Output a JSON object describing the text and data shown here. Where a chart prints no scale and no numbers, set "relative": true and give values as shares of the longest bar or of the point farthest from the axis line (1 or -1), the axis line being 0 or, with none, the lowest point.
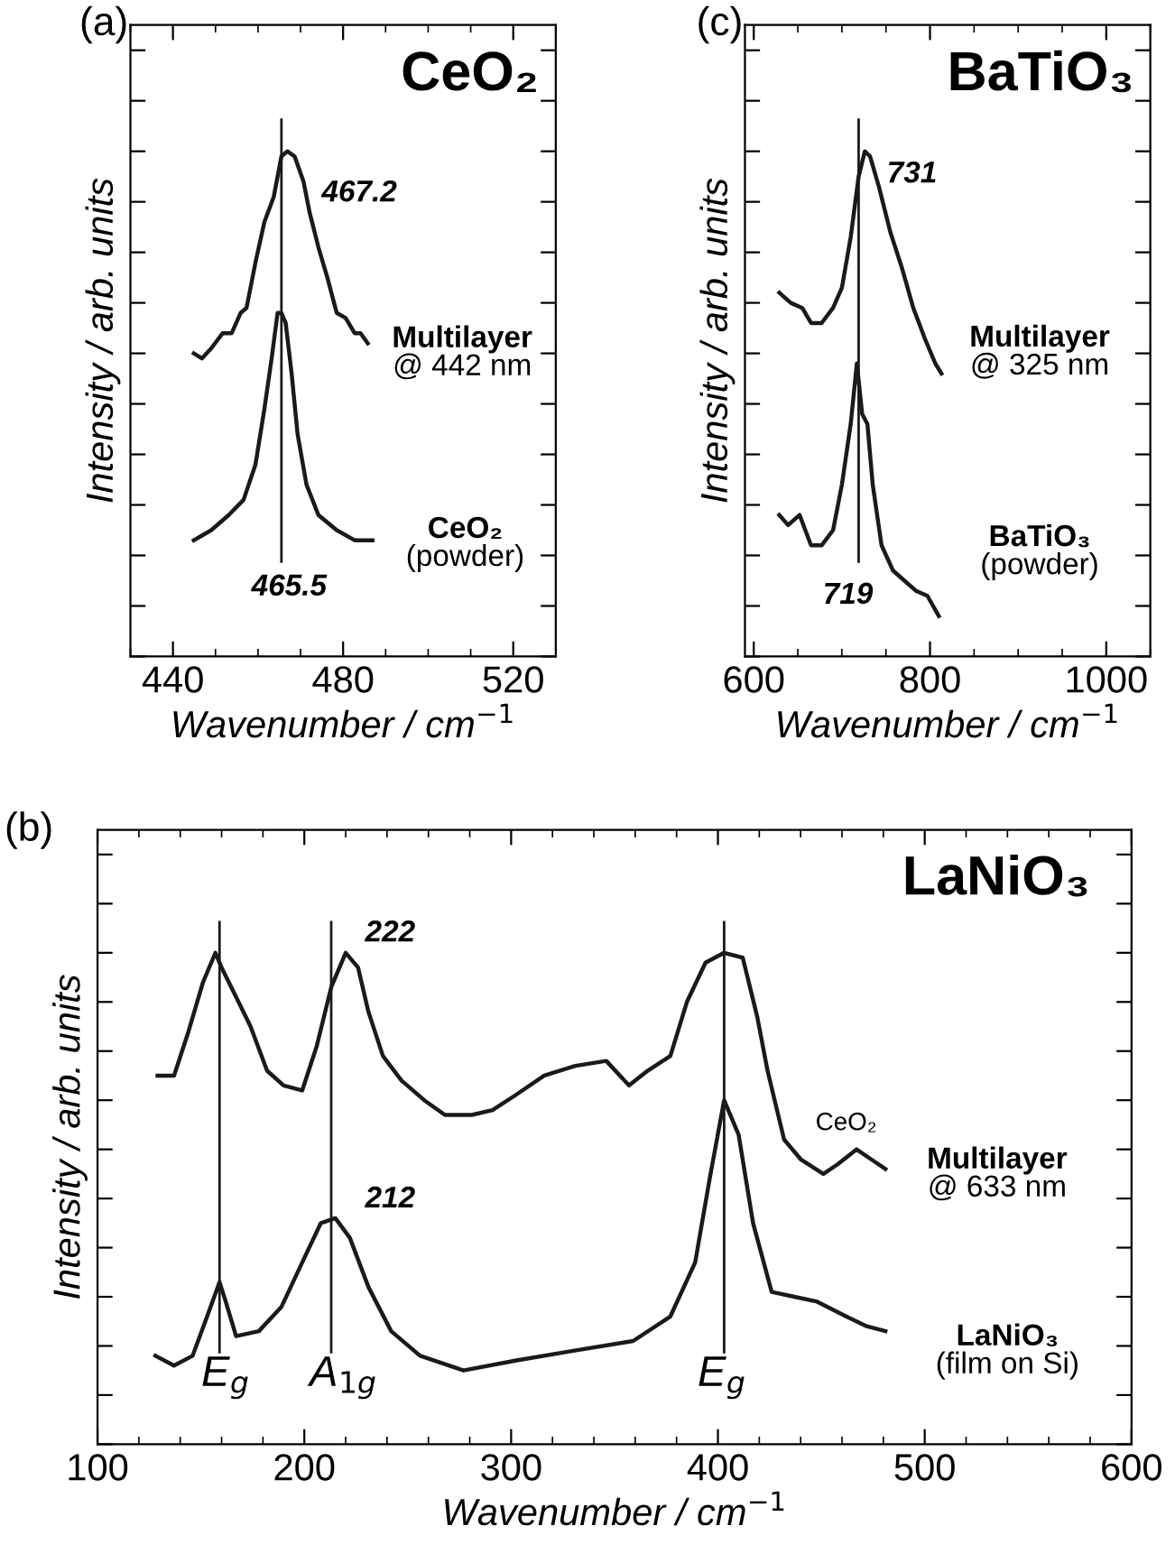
{
  "chart_data": [
    {
      "type": "line",
      "title": "CeO₂",
      "xlabel": "Wavenumber / cm$^{−1}$",
      "ylabel": "Intensity / arb. units",
      "relative": true,
      "tick_labels": "x",
      "grid": false,
      "marker": "none",
      "line_style": "solid",
      "xlim": [
        430,
        530
      ],
      "xticks": [
        440,
        480,
        520
      ],
      "series": [
        {
          "color": "#1a1a1a",
          "x": [
            444.9,
            446.8,
            449,
            451.7,
            453.8,
            455.9,
            457.3,
            459.4,
            461.5,
            463.7,
            465.5,
            466.9,
            468.6,
            470.7,
            472.1,
            474.2,
            476.3,
            478.5,
            480.6,
            482.7,
            484.1,
            485.8
          ],
          "values": [
            0.6,
            0.59,
            0.61,
            0.64,
            0.64,
            0.68,
            0.69,
            0.78,
            0.86,
            0.91,
            0.99,
            1.0,
            0.99,
            0.94,
            0.88,
            0.81,
            0.75,
            0.68,
            0.67,
            0.64,
            0.64,
            0.62
          ]
        },
        {
          "color": "#1a1a1a",
          "x": [
            444.9,
            449,
            453.1,
            456.6,
            459.4,
            461.5,
            463.2,
            464.6,
            465.5,
            466.5,
            467.9,
            469.3,
            471.4,
            474.2,
            478.5,
            482.7,
            486.9
          ],
          "values": [
            0.23,
            0.25,
            0.28,
            0.31,
            0.38,
            0.49,
            0.59,
            0.68,
            0.68,
            0.66,
            0.56,
            0.44,
            0.34,
            0.28,
            0.25,
            0.23,
            0.23
          ]
        }
      ],
      "ref_lines": [
        {
          "axis": "x",
          "value": 465.5,
          "color": "#1a1a1a"
        }
      ],
      "annotations": [
        "(a)",
        "467.2",
        "465.5",
        "Multilayer\n@ 442 nm",
        "CeO₂\n(powder)"
      ]
    },
    {
      "type": "line",
      "title": "BaTiO₃",
      "xlabel": "Wavenumber / cm$^{−1}$",
      "ylabel": "Intensity / arb. units",
      "relative": true,
      "tick_labels": "x",
      "grid": false,
      "marker": "none",
      "line_style": "solid",
      "xlim": [
        590,
        1050
      ],
      "xticks": [
        600,
        800,
        1000
      ],
      "series": [
        {
          "color": "#1a1a1a",
          "x": [
            629,
            642,
            655,
            665,
            677,
            690,
            700,
            710,
            719,
            726,
            732,
            742,
            755,
            768,
            781,
            794,
            806,
            813
          ],
          "values": [
            0.72,
            0.7,
            0.69,
            0.66,
            0.66,
            0.69,
            0.73,
            0.83,
            0.95,
            1.0,
            0.99,
            0.93,
            0.84,
            0.77,
            0.69,
            0.63,
            0.58,
            0.56
          ]
        },
        {
          "color": "#1a1a1a",
          "x": [
            629,
            639,
            652,
            665,
            677,
            690,
            700,
            710,
            717,
            723,
            729,
            735,
            745,
            758,
            771,
            784,
            797,
            810
          ],
          "values": [
            0.28,
            0.26,
            0.28,
            0.22,
            0.22,
            0.25,
            0.34,
            0.46,
            0.58,
            0.48,
            0.46,
            0.34,
            0.22,
            0.17,
            0.15,
            0.13,
            0.12,
            0.08
          ]
        }
      ],
      "ref_lines": [
        {
          "axis": "x",
          "value": 719,
          "color": "#1a1a1a"
        }
      ],
      "annotations": [
        "(c)",
        "731",
        "719",
        "Multilayer\n@ 325 nm",
        "BaTiO₃\n(powder)"
      ]
    },
    {
      "type": "line",
      "title": "LaNiO₃",
      "xlabel": "Wavenumber / cm$^{−1}$",
      "ylabel": "Intensity / arb. units",
      "relative": true,
      "tick_labels": "x",
      "grid": false,
      "marker": "none",
      "line_style": "solid",
      "xlim": [
        100,
        600
      ],
      "xticks": [
        100,
        200,
        300,
        400,
        500,
        600
      ],
      "series": [
        {
          "color": "#1a1a1a",
          "x": [
            129,
            137,
            144,
            151,
            157,
            160,
            167,
            174,
            182,
            190,
            199,
            206,
            213,
            220,
            226,
            231,
            238,
            247,
            258,
            268,
            281,
            291,
            302,
            316,
            331,
            346,
            357,
            366,
            377,
            385,
            394,
            403,
            412,
            419,
            424,
            432,
            440,
            451,
            458,
            467,
            474,
            481
          ],
          "values": [
            0.75,
            0.75,
            0.84,
            0.94,
            1.0,
            0.97,
            0.91,
            0.85,
            0.76,
            0.73,
            0.72,
            0.81,
            0.93,
            1.0,
            0.97,
            0.88,
            0.79,
            0.74,
            0.7,
            0.67,
            0.67,
            0.68,
            0.71,
            0.75,
            0.77,
            0.78,
            0.73,
            0.76,
            0.79,
            0.9,
            0.98,
            1.0,
            0.99,
            0.87,
            0.76,
            0.62,
            0.58,
            0.55,
            0.57,
            0.6,
            0.58,
            0.56
          ]
        },
        {
          "color": "#1a1a1a",
          "x": [
            128,
            137,
            146,
            153,
            159,
            162,
            167,
            178,
            189,
            199,
            208,
            215,
            222,
            231,
            242,
            256,
            277,
            302,
            330,
            359,
            377,
            389,
            396,
            403,
            410,
            417,
            426,
            437,
            448,
            462,
            472,
            481
          ],
          "values": [
            0.18,
            0.16,
            0.18,
            0.26,
            0.33,
            0.29,
            0.22,
            0.23,
            0.28,
            0.37,
            0.45,
            0.46,
            0.42,
            0.32,
            0.23,
            0.18,
            0.15,
            0.17,
            0.19,
            0.21,
            0.26,
            0.37,
            0.54,
            0.7,
            0.63,
            0.45,
            0.31,
            0.3,
            0.29,
            0.26,
            0.24,
            0.23
          ]
        }
      ],
      "ref_lines": [
        {
          "axis": "x",
          "value": 159,
          "color": "#1a1a1a"
        },
        {
          "axis": "x",
          "value": 213,
          "color": "#1a1a1a"
        },
        {
          "axis": "x",
          "value": 403,
          "color": "#1a1a1a"
        }
      ],
      "annotations": [
        "(b)",
        "222",
        "212",
        "CeO₂",
        "Multilayer\n@ 633 nm",
        "LaNiO₃\n(film on Si)",
        "E$_{g}$",
        "A$_{1g}$",
        "E$_{g}$"
      ]
    }
  ]
}
